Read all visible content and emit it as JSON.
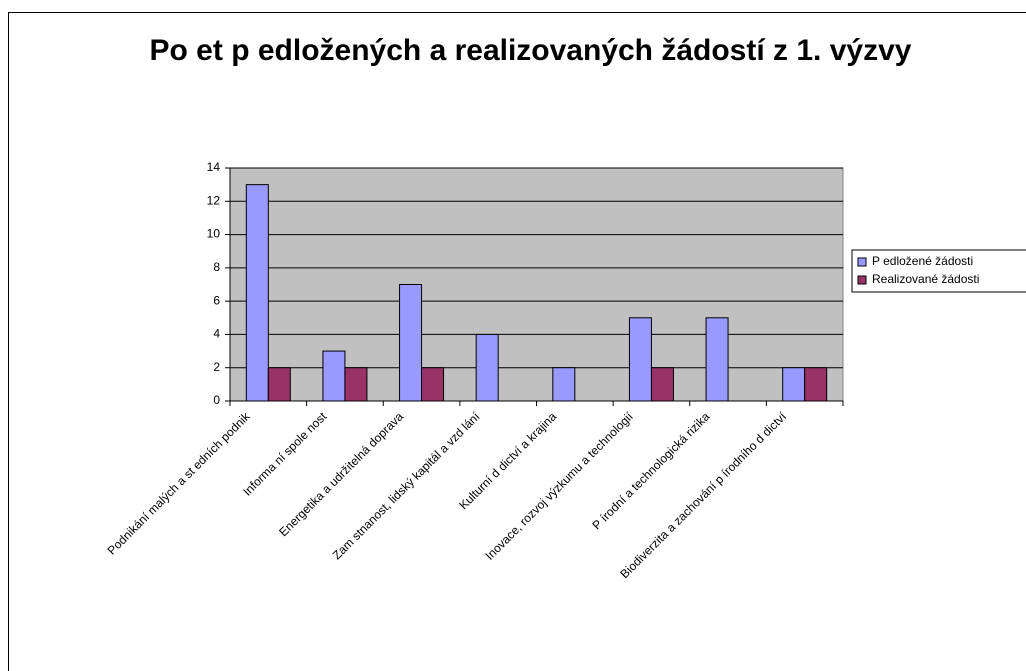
{
  "chart_data": {
    "type": "bar",
    "title": "Po et p edložených a realizovaných žádostí z 1. výzvy",
    "categories": [
      "Podnikání malých a st edních podnik",
      "Informa ní spole nost",
      "Energetika a udržitelná doprava",
      "Zam stnanost, lidský kapitál a vzd lání",
      "Kulturní d dictví a krajina",
      "Inovace, rozvoj výzkumu a technologií",
      "P írodní a technologická rizika",
      "Biodiverzita a zachování p írodního d dictví"
    ],
    "series": [
      {
        "name": "P edložené žádosti",
        "color": "#9999ff",
        "values": [
          13,
          3,
          7,
          4,
          2,
          5,
          5,
          2
        ]
      },
      {
        "name": "Realizované žádosti",
        "color": "#993366",
        "values": [
          2,
          2,
          2,
          0,
          0,
          2,
          0,
          2
        ]
      }
    ],
    "ylim": [
      0,
      14
    ],
    "yticks": [
      0,
      2,
      4,
      6,
      8,
      10,
      12,
      14
    ],
    "grid": true,
    "legend": "right"
  }
}
